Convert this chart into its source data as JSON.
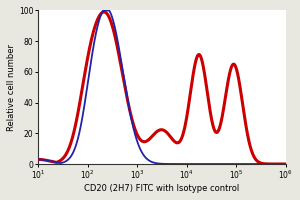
{
  "title": "",
  "xlabel": "CD20 (2H7) FITC with Isotype control",
  "ylabel": "Relative cell number",
  "ylim": [
    0,
    100
  ],
  "yticks": [
    0,
    20,
    40,
    60,
    80,
    100
  ],
  "blue_color": "#2222aa",
  "red_color": "#cc0000",
  "bg_color": "#ffffff",
  "fig_bg_color": "#e8e8e0",
  "linewidth_blue": 1.3,
  "linewidth_red": 2.2,
  "font_size_label": 6.0,
  "font_size_tick": 5.5
}
